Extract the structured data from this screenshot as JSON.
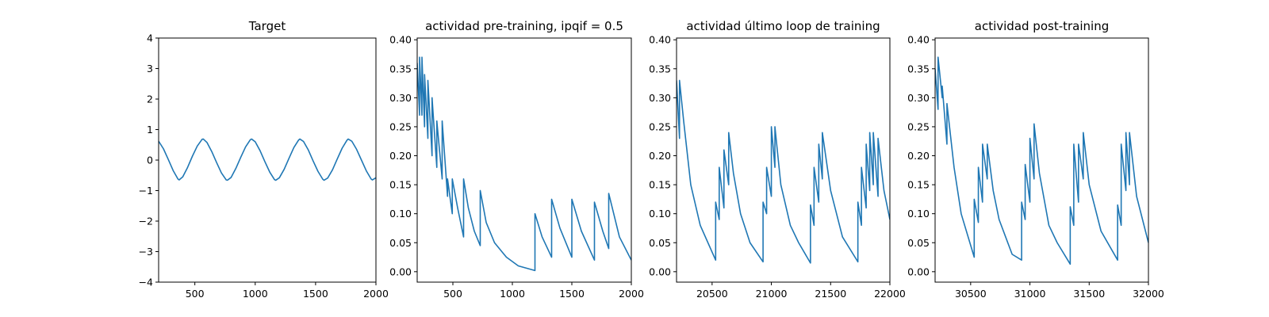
{
  "figure": {
    "background": "#ffffff",
    "line_color": "#1f77b4"
  },
  "chart_data": [
    {
      "type": "line",
      "title": "Target",
      "xlim": [
        200,
        2000
      ],
      "ylim": [
        -4,
        4
      ],
      "xticks": [
        500,
        1000,
        1500,
        2000
      ],
      "yticks": [
        -4,
        -3,
        -2,
        -1,
        0,
        1,
        2,
        3,
        4
      ],
      "xtick_labels": [
        "500",
        "1000",
        "1500",
        "2000"
      ],
      "ytick_labels": [
        "−4",
        "−3",
        "−2",
        "−1",
        "0",
        "1",
        "2",
        "3",
        "4"
      ],
      "series": [
        {
          "x": [
            200,
            240,
            280,
            320,
            360,
            370,
            400,
            440,
            480,
            520,
            560,
            570,
            600,
            640,
            680,
            720,
            760,
            770,
            800,
            840,
            880,
            920,
            960,
            970,
            1000,
            1040,
            1080,
            1120,
            1160,
            1170,
            1200,
            1240,
            1280,
            1320,
            1360,
            1370,
            1400,
            1440,
            1480,
            1520,
            1560,
            1570,
            1600,
            1640,
            1680,
            1720,
            1760,
            1770,
            1800,
            1840,
            1880,
            1920,
            1960,
            1970,
            2000
          ],
          "y": [
            0.62,
            0.37,
            0.02,
            -0.34,
            -0.62,
            -0.65,
            -0.55,
            -0.24,
            0.13,
            0.46,
            0.68,
            0.69,
            0.58,
            0.28,
            -0.08,
            -0.42,
            -0.65,
            -0.66,
            -0.57,
            -0.27,
            0.09,
            0.43,
            0.67,
            0.69,
            0.6,
            0.31,
            -0.05,
            -0.39,
            -0.64,
            -0.66,
            -0.58,
            -0.3,
            0.06,
            0.41,
            0.66,
            0.69,
            0.61,
            0.33,
            -0.03,
            -0.37,
            -0.63,
            -0.66,
            -0.59,
            -0.32,
            0.04,
            0.39,
            0.65,
            0.69,
            0.62,
            0.35,
            0.0,
            -0.35,
            -0.62,
            -0.65,
            -0.58
          ]
        }
      ]
    },
    {
      "type": "line",
      "title": "actividad pre-training, ipqif = 0.5",
      "xlim": [
        200,
        2000
      ],
      "ylim": [
        -0.018,
        0.403
      ],
      "xticks": [
        500,
        1000,
        1500,
        2000
      ],
      "yticks": [
        0.0,
        0.05,
        0.1,
        0.15,
        0.2,
        0.25,
        0.3,
        0.35,
        0.4
      ],
      "xtick_labels": [
        "500",
        "1000",
        "1500",
        "2000"
      ],
      "ytick_labels": [
        "0.00",
        "0.05",
        "0.10",
        "0.15",
        "0.20",
        "0.25",
        "0.30",
        "0.35",
        "0.40"
      ],
      "series": [
        {
          "x": [
            200,
            220,
            220,
            240,
            240,
            262,
            262,
            290,
            290,
            325,
            325,
            365,
            365,
            410,
            410,
            455,
            455,
            495,
            495,
            540,
            590,
            590,
            630,
            680,
            730,
            730,
            780,
            850,
            950,
            1050,
            1190,
            1190,
            1250,
            1330,
            1330,
            1400,
            1500,
            1500,
            1580,
            1690,
            1690,
            1760,
            1810,
            1810,
            1900,
            2000
          ],
          "y": [
            0.36,
            0.27,
            0.37,
            0.27,
            0.37,
            0.25,
            0.34,
            0.23,
            0.33,
            0.2,
            0.3,
            0.18,
            0.26,
            0.16,
            0.26,
            0.13,
            0.16,
            0.1,
            0.16,
            0.11,
            0.06,
            0.16,
            0.11,
            0.07,
            0.045,
            0.14,
            0.085,
            0.05,
            0.025,
            0.01,
            0.002,
            0.1,
            0.06,
            0.025,
            0.125,
            0.075,
            0.025,
            0.125,
            0.07,
            0.02,
            0.12,
            0.07,
            0.04,
            0.135,
            0.06,
            0.02
          ]
        }
      ]
    },
    {
      "type": "line",
      "title": "actividad último loop de training",
      "xlim": [
        20200,
        22000
      ],
      "ylim": [
        -0.018,
        0.403
      ],
      "xticks": [
        20500,
        21000,
        21500,
        22000
      ],
      "yticks": [
        0.0,
        0.05,
        0.1,
        0.15,
        0.2,
        0.25,
        0.3,
        0.35,
        0.4
      ],
      "xtick_labels": [
        "20500",
        "21000",
        "21500",
        "22000"
      ],
      "ytick_labels": [
        "0.00",
        "0.05",
        "0.10",
        "0.15",
        "0.20",
        "0.25",
        "0.30",
        "0.35",
        "0.40"
      ],
      "series": [
        {
          "x": [
            20200,
            20225,
            20225,
            20260,
            20320,
            20400,
            20530,
            20530,
            20560,
            20560,
            20600,
            20600,
            20640,
            20640,
            20680,
            20740,
            20820,
            20930,
            20930,
            20960,
            20960,
            21000,
            21000,
            21030,
            21030,
            21080,
            21160,
            21230,
            21330,
            21330,
            21360,
            21360,
            21400,
            21400,
            21430,
            21430,
            21500,
            21600,
            21730,
            21730,
            21760,
            21760,
            21800,
            21800,
            21830,
            21830,
            21860,
            21860,
            21900,
            21900,
            21950,
            22000
          ],
          "y": [
            0.33,
            0.23,
            0.33,
            0.26,
            0.15,
            0.08,
            0.02,
            0.12,
            0.09,
            0.18,
            0.11,
            0.21,
            0.15,
            0.24,
            0.17,
            0.1,
            0.05,
            0.017,
            0.12,
            0.1,
            0.18,
            0.13,
            0.25,
            0.18,
            0.25,
            0.15,
            0.08,
            0.05,
            0.015,
            0.115,
            0.08,
            0.18,
            0.12,
            0.22,
            0.16,
            0.24,
            0.14,
            0.06,
            0.017,
            0.12,
            0.08,
            0.18,
            0.11,
            0.22,
            0.14,
            0.24,
            0.15,
            0.24,
            0.13,
            0.23,
            0.14,
            0.09
          ]
        }
      ]
    },
    {
      "type": "line",
      "title": "actividad post-training",
      "xlim": [
        30200,
        32000
      ],
      "ylim": [
        -0.018,
        0.403
      ],
      "xticks": [
        30500,
        31000,
        31500,
        32000
      ],
      "yticks": [
        0.0,
        0.05,
        0.1,
        0.15,
        0.2,
        0.25,
        0.3,
        0.35,
        0.4
      ],
      "xtick_labels": [
        "30500",
        "31000",
        "31500",
        "32000"
      ],
      "ytick_labels": [
        "0.00",
        "0.05",
        "0.10",
        "0.15",
        "0.20",
        "0.25",
        "0.30",
        "0.35",
        "0.40"
      ],
      "series": [
        {
          "x": [
            30200,
            30225,
            30225,
            30260,
            30260,
            30300,
            30300,
            30360,
            30420,
            30530,
            30530,
            30565,
            30565,
            30600,
            30600,
            30640,
            30640,
            30690,
            30740,
            30850,
            30930,
            30930,
            30960,
            30960,
            31000,
            31000,
            31035,
            31035,
            31080,
            31160,
            31230,
            31340,
            31340,
            31370,
            31370,
            31410,
            31410,
            31450,
            31450,
            31500,
            31600,
            31740,
            31740,
            31770,
            31770,
            31810,
            31810,
            31840,
            31840,
            31900,
            32000
          ],
          "y": [
            0.35,
            0.28,
            0.37,
            0.3,
            0.32,
            0.22,
            0.29,
            0.18,
            0.1,
            0.025,
            0.125,
            0.085,
            0.18,
            0.12,
            0.22,
            0.16,
            0.22,
            0.14,
            0.09,
            0.03,
            0.02,
            0.12,
            0.09,
            0.185,
            0.12,
            0.23,
            0.16,
            0.255,
            0.17,
            0.08,
            0.05,
            0.013,
            0.112,
            0.08,
            0.22,
            0.12,
            0.22,
            0.16,
            0.24,
            0.15,
            0.07,
            0.02,
            0.115,
            0.08,
            0.22,
            0.14,
            0.24,
            0.15,
            0.24,
            0.13,
            0.05
          ]
        }
      ]
    }
  ]
}
